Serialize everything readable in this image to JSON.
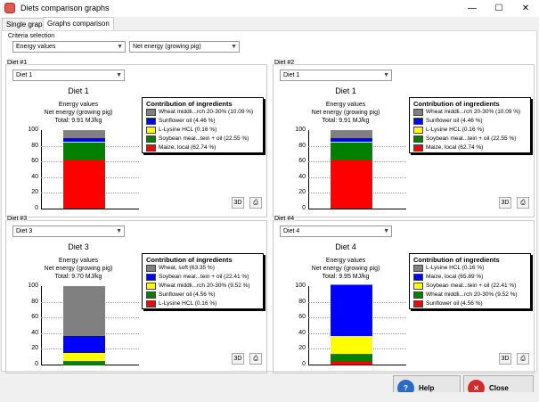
{
  "window": {
    "title": "Diets comparison graphs",
    "minimize_glyph": "—",
    "maximize_glyph": "☐",
    "close_glyph": "✕"
  },
  "tabs": [
    {
      "label": "Single graph"
    },
    {
      "label": "Graphs comparison"
    }
  ],
  "criteria": {
    "label": "Criteria selection",
    "value1": "Energy values",
    "value2": "Net energy (growing pig)"
  },
  "colors": {
    "gray": "#808080",
    "blue": "#0000ff",
    "yellow": "#ffff00",
    "green": "#008000",
    "red": "#ff0000"
  },
  "diets": [
    {
      "group_label": "Diet #1",
      "selected": "Diet 1",
      "title": "Diet 1",
      "line1": "Energy values",
      "line2": "Net energy (growing pig)",
      "line3": "Total: 9.91 MJ/kg",
      "legend_title": "Contribution of ingredients",
      "legend": [
        {
          "label": "Wheat middli...rch 20-30% (10.09 %)",
          "color": "gray"
        },
        {
          "label": "Sunflower oil (4.46 %)",
          "color": "blue"
        },
        {
          "label": "L-Lysine HCL (0.16 %)",
          "color": "yellow"
        },
        {
          "label": "Soybean meal...tein + oil (22.55 %)",
          "color": "green"
        },
        {
          "label": "Maize, local (62.74 %)",
          "color": "red"
        }
      ],
      "stack": [
        {
          "value": 62.74,
          "color": "red"
        },
        {
          "value": 22.55,
          "color": "green"
        },
        {
          "value": 0.16,
          "color": "yellow"
        },
        {
          "value": 4.46,
          "color": "blue"
        },
        {
          "value": 10.09,
          "color": "gray"
        }
      ]
    },
    {
      "group_label": "Diet #2",
      "selected": "Diet 1",
      "title": "Diet 1",
      "line1": "Energy values",
      "line2": "Net energy (growing pig)",
      "line3": "Total: 9.91 MJ/kg",
      "legend_title": "Contribution of ingredients",
      "legend": [
        {
          "label": "Wheat middli...rch 20-30% (10.09 %)",
          "color": "gray"
        },
        {
          "label": "Sunflower oil (4.46 %)",
          "color": "blue"
        },
        {
          "label": "L-Lysine HCL (0.16 %)",
          "color": "yellow"
        },
        {
          "label": "Soybean meal...tein + oil (22.55 %)",
          "color": "green"
        },
        {
          "label": "Maize, local (62.74 %)",
          "color": "red"
        }
      ],
      "stack": [
        {
          "value": 62.74,
          "color": "red"
        },
        {
          "value": 22.55,
          "color": "green"
        },
        {
          "value": 0.16,
          "color": "yellow"
        },
        {
          "value": 4.46,
          "color": "blue"
        },
        {
          "value": 10.09,
          "color": "gray"
        }
      ]
    },
    {
      "group_label": "Diet #3",
      "selected": "Diet 3",
      "title": "Diet 3",
      "line1": "Energy values",
      "line2": "Net energy (growing pig)",
      "line3": "Total: 9.70 MJ/kg",
      "legend_title": "Contribution of ingredients",
      "legend": [
        {
          "label": "Wheat, soft (63.35 %)",
          "color": "gray"
        },
        {
          "label": "Soybean meal...tein + oil (22.41 %)",
          "color": "blue"
        },
        {
          "label": "Wheat middli...rch 20-30% (9.52 %)",
          "color": "yellow"
        },
        {
          "label": "Sunflower oil (4.56 %)",
          "color": "green"
        },
        {
          "label": "L-Lysine HCL (0.16 %)",
          "color": "red"
        }
      ],
      "stack": [
        {
          "value": 0.16,
          "color": "red"
        },
        {
          "value": 4.56,
          "color": "green"
        },
        {
          "value": 9.52,
          "color": "yellow"
        },
        {
          "value": 22.41,
          "color": "blue"
        },
        {
          "value": 63.35,
          "color": "gray"
        }
      ]
    },
    {
      "group_label": "Diet #4",
      "selected": "Diet 4",
      "title": "Diet 4",
      "line1": "Energy values",
      "line2": "Net energy (growing pig)",
      "line3": "Total: 9.95 MJ/kg",
      "legend_title": "Contribution of ingredients",
      "legend": [
        {
          "label": "L-Lysine HCL (0.16 %)",
          "color": "gray"
        },
        {
          "label": "Maize, local (65.89 %)",
          "color": "blue"
        },
        {
          "label": "Soybean meal...tein + oil (22.41 %)",
          "color": "yellow"
        },
        {
          "label": "Wheat middli...rch 20-30% (9.52 %)",
          "color": "green"
        },
        {
          "label": "Sunflower oil (4.56 %)",
          "color": "red"
        }
      ],
      "stack": [
        {
          "value": 4.56,
          "color": "red"
        },
        {
          "value": 9.52,
          "color": "green"
        },
        {
          "value": 22.41,
          "color": "yellow"
        },
        {
          "value": 65.89,
          "color": "blue"
        },
        {
          "value": 0.16,
          "color": "gray"
        }
      ]
    }
  ],
  "ticks": [
    "100",
    "80",
    "60",
    "40",
    "20",
    "0"
  ],
  "buttons": {
    "three_d": "3D",
    "help": "Help",
    "close": "Close"
  }
}
